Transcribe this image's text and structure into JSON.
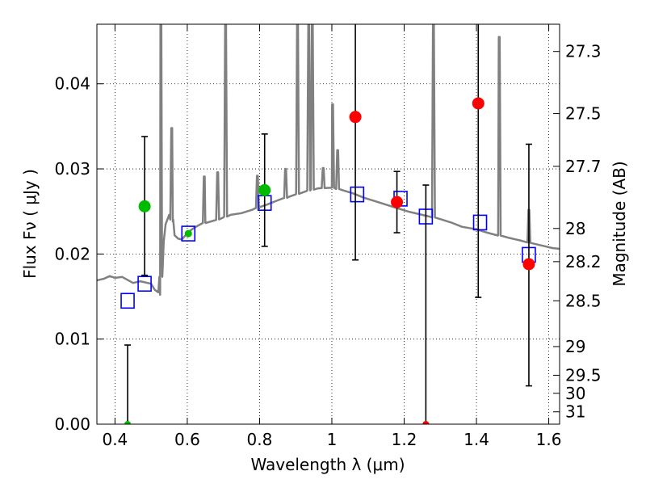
{
  "chart_data": {
    "type": "scatter",
    "title": "",
    "xlabel": "Wavelength  λ (μm)",
    "ylabel": "Flux  Fν ( μJy )",
    "ylabel_right": "Magnitude (AB)",
    "xlim": [
      0.35,
      1.63
    ],
    "ylim": [
      0.0,
      0.047
    ],
    "grid": true,
    "grid_style": "dotted",
    "x_ticks": [
      0.4,
      0.6,
      0.8,
      1.0,
      1.2,
      1.4,
      1.6
    ],
    "x_tick_labels": [
      "0.4",
      "0.6",
      "0.8",
      "1",
      "1.2",
      "1.4",
      "1.6"
    ],
    "y_ticks": [
      0.0,
      0.01,
      0.02,
      0.03,
      0.04
    ],
    "y_tick_labels": [
      "0.00",
      "0.01",
      "0.02",
      "0.03",
      "0.04"
    ],
    "right_axis": {
      "scale": "AB magnitude",
      "tick_labels": [
        "27.3",
        "27.5",
        "27.7",
        "28",
        "28.2",
        "28.5",
        "29",
        "29.5",
        "30",
        "31"
      ],
      "tick_flux": [
        0.0438,
        0.0365,
        0.0303,
        0.023,
        0.0191,
        0.0145,
        0.00912,
        0.00575,
        0.00363,
        0.00145
      ]
    },
    "colors": {
      "model": "#808080",
      "observed_high": "#ff0000",
      "observed_low": "#00bb00",
      "model_photometry": "#0000ff",
      "errorbar": "#000000"
    },
    "model_spectrum": {
      "x": [
        0.35,
        0.37,
        0.385,
        0.4,
        0.42,
        0.45,
        0.47,
        0.5,
        0.51,
        0.52,
        0.525,
        0.53,
        0.535,
        0.54,
        0.55,
        0.56,
        0.565,
        0.575,
        0.585,
        0.595,
        0.6,
        0.62,
        0.65,
        0.68,
        0.7,
        0.72,
        0.75,
        0.78,
        0.8,
        0.82,
        0.85,
        0.88,
        0.9,
        0.93,
        0.96,
        1.0,
        1.03,
        1.06,
        1.09,
        1.12,
        1.15,
        1.18,
        1.21,
        1.24,
        1.27,
        1.3,
        1.33,
        1.36,
        1.4,
        1.43,
        1.46,
        1.49,
        1.52,
        1.55,
        1.58,
        1.61,
        1.63
      ],
      "y": [
        0.0169,
        0.0171,
        0.0174,
        0.0172,
        0.0173,
        0.0166,
        0.0168,
        0.0165,
        0.0158,
        0.0155,
        0.0152,
        0.0205,
        0.0215,
        0.0235,
        0.0246,
        0.0238,
        0.0222,
        0.0218,
        0.0217,
        0.0222,
        0.0225,
        0.0231,
        0.0237,
        0.024,
        0.0243,
        0.0246,
        0.0248,
        0.0252,
        0.0255,
        0.0258,
        0.0263,
        0.0267,
        0.027,
        0.0274,
        0.0277,
        0.0278,
        0.0275,
        0.0271,
        0.0266,
        0.0262,
        0.0258,
        0.0254,
        0.025,
        0.0247,
        0.0244,
        0.0241,
        0.0237,
        0.0232,
        0.0229,
        0.0225,
        0.0222,
        0.0219,
        0.0216,
        0.0213,
        0.021,
        0.0207,
        0.0206
      ],
      "emission_lines": [
        {
          "x": 0.527,
          "peak": 0.047
        },
        {
          "x": 0.557,
          "peak": 0.0348
        },
        {
          "x": 0.647,
          "peak": 0.0291
        },
        {
          "x": 0.684,
          "peak": 0.0296
        },
        {
          "x": 0.706,
          "peak": 0.047
        },
        {
          "x": 0.794,
          "peak": 0.0292
        },
        {
          "x": 0.872,
          "peak": 0.03
        },
        {
          "x": 0.905,
          "peak": 0.047
        },
        {
          "x": 0.936,
          "peak": 0.047
        },
        {
          "x": 0.946,
          "peak": 0.047
        },
        {
          "x": 0.976,
          "peak": 0.0301
        },
        {
          "x": 1.002,
          "peak": 0.0376
        },
        {
          "x": 1.016,
          "peak": 0.0322
        },
        {
          "x": 1.281,
          "peak": 0.047
        },
        {
          "x": 1.463,
          "peak": 0.0455
        },
        {
          "x": 1.545,
          "peak": 0.0252
        }
      ]
    },
    "model_photometry": {
      "x": [
        0.435,
        0.482,
        0.603,
        0.814,
        1.07,
        1.19,
        1.26,
        1.41,
        1.545
      ],
      "y": [
        0.0145,
        0.0165,
        0.0224,
        0.026,
        0.027,
        0.0265,
        0.0244,
        0.0237,
        0.0199
      ]
    },
    "observed": {
      "x": [
        0.435,
        0.482,
        0.603,
        0.814,
        1.065,
        1.18,
        1.26,
        1.405,
        1.545
      ],
      "y": [
        0.0,
        0.0256,
        0.0224,
        0.0275,
        0.0361,
        0.0261,
        0.0,
        0.0377,
        0.0188
      ],
      "yerr_low": [
        0.0,
        0.0081,
        0.0,
        0.0066,
        0.0168,
        0.0036,
        0.0,
        0.0228,
        0.0143
      ],
      "yerr_high": [
        0.0093,
        0.0082,
        0.0,
        0.0066,
        0.0168,
        0.0036,
        0.0281,
        0.0228,
        0.0141
      ],
      "detected_color": [
        "low",
        "low",
        "low",
        "low",
        "high",
        "high",
        "high",
        "high",
        "high"
      ]
    }
  }
}
